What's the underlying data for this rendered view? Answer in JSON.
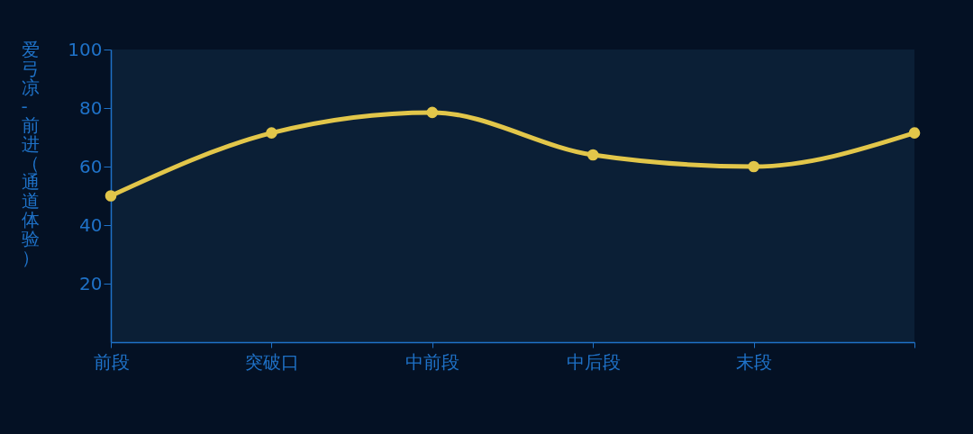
{
  "chart_data": {
    "type": "line",
    "ylabel": "爱弓凉-前进（通道体验）",
    "categories": [
      "前段",
      "突破口",
      "中前段",
      "中后段",
      "末段",
      null
    ],
    "ylim": [
      0,
      100
    ],
    "yticks": [
      20,
      40,
      60,
      80,
      100
    ],
    "series": [
      {
        "color": "#e2c64a",
        "values": [
          50,
          71.5,
          78.5,
          64,
          60,
          71.5
        ]
      }
    ],
    "marker": "circle",
    "line_style": "solid",
    "grid": false,
    "legend": false
  }
}
